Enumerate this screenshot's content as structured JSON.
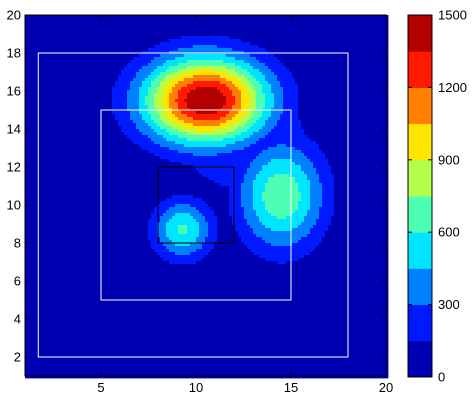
{
  "chart_data": {
    "type": "heatmap",
    "subtype": "filled-contour",
    "colormap": "jet",
    "xlim": [
      1,
      20
    ],
    "ylim": [
      1,
      20
    ],
    "x_ticks": [
      5,
      10,
      15,
      20
    ],
    "y_ticks": [
      2,
      4,
      6,
      8,
      10,
      12,
      14,
      16,
      18,
      20
    ],
    "x_tick_labels": [
      "5",
      "10",
      "15",
      "20"
    ],
    "y_tick_labels": [
      "2",
      "4",
      "6",
      "8",
      "10",
      "12",
      "14",
      "16",
      "18",
      "20"
    ],
    "contour_levels": [
      0,
      150,
      300,
      450,
      600,
      750,
      900,
      1050,
      1200,
      1350,
      1500
    ],
    "peaks": [
      {
        "x": 10.5,
        "y": 15.5,
        "value": 1500,
        "sx": 2.3,
        "sy": 1.6
      },
      {
        "x": 14.5,
        "y": 10.5,
        "value": 720,
        "sx": 1.6,
        "sy": 2.0
      },
      {
        "x": 9.3,
        "y": 8.7,
        "value": 620,
        "sx": 1.1,
        "sy": 1.1
      },
      {
        "x": 12.5,
        "y": 13.5,
        "value": 260,
        "sx": 3.0,
        "sy": 2.5
      }
    ],
    "rectangles": [
      {
        "x0": 1.7,
        "y0": 2.0,
        "x1": 18.0,
        "y1": 18.0,
        "stroke": "#ffffff"
      },
      {
        "x0": 5.0,
        "y0": 5.0,
        "x1": 15.0,
        "y1": 15.0,
        "stroke": "#ffffff"
      },
      {
        "x0": 8.0,
        "y0": 8.0,
        "x1": 12.0,
        "y1": 12.0,
        "stroke": "#000000"
      }
    ],
    "colorbar": {
      "range": [
        0,
        1500
      ],
      "ticks": [
        0,
        300,
        600,
        900,
        1200,
        1500
      ],
      "tick_labels": [
        "0",
        "300",
        "600",
        "900",
        "1200",
        "1500"
      ]
    },
    "background_color": "#00008f",
    "grid": false,
    "title": "",
    "xlabel": "",
    "ylabel": ""
  }
}
